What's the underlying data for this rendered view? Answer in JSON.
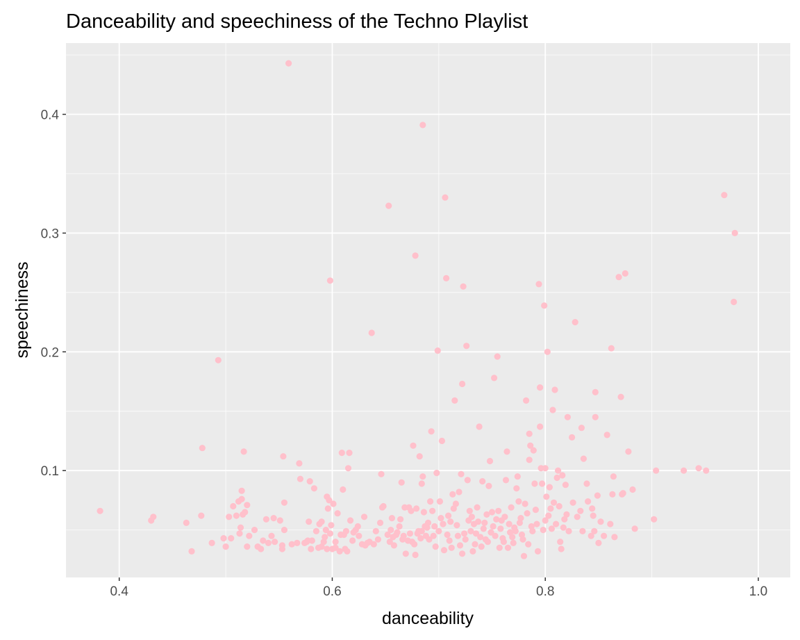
{
  "chart_data": {
    "type": "scatter",
    "title": "Danceability and speechiness of the Techno Playlist",
    "xlabel": "danceability",
    "ylabel": "speechiness",
    "xlim": [
      0.35,
      1.03
    ],
    "ylim": [
      0.01,
      0.46
    ],
    "x_ticks": [
      "0.4",
      "0.6",
      "0.8",
      "1.0"
    ],
    "y_ticks": [
      "0.1",
      "0.2",
      "0.3",
      "0.4"
    ],
    "grid": true,
    "point_color": "#ffc0cb",
    "panel_color": "#ebebeb",
    "points": [
      [
        0.382,
        0.066
      ],
      [
        0.43,
        0.058
      ],
      [
        0.432,
        0.061
      ],
      [
        0.463,
        0.056
      ],
      [
        0.468,
        0.032
      ],
      [
        0.477,
        0.062
      ],
      [
        0.478,
        0.119
      ],
      [
        0.487,
        0.039
      ],
      [
        0.493,
        0.193
      ],
      [
        0.498,
        0.043
      ],
      [
        0.5,
        0.036
      ],
      [
        0.503,
        0.061
      ],
      [
        0.505,
        0.043
      ],
      [
        0.507,
        0.07
      ],
      [
        0.51,
        0.062
      ],
      [
        0.512,
        0.074
      ],
      [
        0.513,
        0.047
      ],
      [
        0.514,
        0.052
      ],
      [
        0.515,
        0.076
      ],
      [
        0.515,
        0.083
      ],
      [
        0.516,
        0.063
      ],
      [
        0.517,
        0.116
      ],
      [
        0.518,
        0.065
      ],
      [
        0.52,
        0.071
      ],
      [
        0.52,
        0.036
      ],
      [
        0.522,
        0.045
      ],
      [
        0.527,
        0.05
      ],
      [
        0.53,
        0.036
      ],
      [
        0.533,
        0.034
      ],
      [
        0.535,
        0.041
      ],
      [
        0.538,
        0.059
      ],
      [
        0.54,
        0.039
      ],
      [
        0.543,
        0.045
      ],
      [
        0.545,
        0.06
      ],
      [
        0.546,
        0.04
      ],
      [
        0.551,
        0.058
      ],
      [
        0.553,
        0.037
      ],
      [
        0.553,
        0.034
      ],
      [
        0.554,
        0.112
      ],
      [
        0.555,
        0.073
      ],
      [
        0.555,
        0.05
      ],
      [
        0.559,
        0.443
      ],
      [
        0.562,
        0.038
      ],
      [
        0.567,
        0.039
      ],
      [
        0.569,
        0.106
      ],
      [
        0.57,
        0.093
      ],
      [
        0.574,
        0.039
      ],
      [
        0.576,
        0.04
      ],
      [
        0.577,
        0.041
      ],
      [
        0.578,
        0.057
      ],
      [
        0.579,
        0.091
      ],
      [
        0.58,
        0.034
      ],
      [
        0.581,
        0.041
      ],
      [
        0.583,
        0.085
      ],
      [
        0.585,
        0.049
      ],
      [
        0.587,
        0.035
      ],
      [
        0.588,
        0.055
      ],
      [
        0.59,
        0.057
      ],
      [
        0.59,
        0.036
      ],
      [
        0.592,
        0.04
      ],
      [
        0.593,
        0.044
      ],
      [
        0.594,
        0.05
      ],
      [
        0.595,
        0.034
      ],
      [
        0.595,
        0.078
      ],
      [
        0.596,
        0.068
      ],
      [
        0.597,
        0.075
      ],
      [
        0.598,
        0.26
      ],
      [
        0.598,
        0.047
      ],
      [
        0.599,
        0.054
      ],
      [
        0.6,
        0.034
      ],
      [
        0.601,
        0.072
      ],
      [
        0.603,
        0.04
      ],
      [
        0.603,
        0.035
      ],
      [
        0.605,
        0.064
      ],
      [
        0.607,
        0.032
      ],
      [
        0.608,
        0.046
      ],
      [
        0.609,
        0.115
      ],
      [
        0.61,
        0.084
      ],
      [
        0.611,
        0.046
      ],
      [
        0.612,
        0.034
      ],
      [
        0.613,
        0.049
      ],
      [
        0.614,
        0.032
      ],
      [
        0.615,
        0.102
      ],
      [
        0.616,
        0.115
      ],
      [
        0.617,
        0.058
      ],
      [
        0.619,
        0.041
      ],
      [
        0.62,
        0.048
      ],
      [
        0.622,
        0.05
      ],
      [
        0.624,
        0.053
      ],
      [
        0.625,
        0.045
      ],
      [
        0.628,
        0.038
      ],
      [
        0.63,
        0.061
      ],
      [
        0.631,
        0.037
      ],
      [
        0.633,
        0.039
      ],
      [
        0.635,
        0.04
      ],
      [
        0.637,
        0.216
      ],
      [
        0.639,
        0.038
      ],
      [
        0.641,
        0.049
      ],
      [
        0.643,
        0.042
      ],
      [
        0.645,
        0.056
      ],
      [
        0.646,
        0.097
      ],
      [
        0.647,
        0.069
      ],
      [
        0.648,
        0.07
      ],
      [
        0.652,
        0.046
      ],
      [
        0.653,
        0.323
      ],
      [
        0.654,
        0.04
      ],
      [
        0.655,
        0.05
      ],
      [
        0.656,
        0.06
      ],
      [
        0.657,
        0.044
      ],
      [
        0.658,
        0.037
      ],
      [
        0.66,
        0.046
      ],
      [
        0.661,
        0.048
      ],
      [
        0.663,
        0.053
      ],
      [
        0.664,
        0.059
      ],
      [
        0.665,
        0.09
      ],
      [
        0.666,
        0.042
      ],
      [
        0.667,
        0.045
      ],
      [
        0.668,
        0.069
      ],
      [
        0.669,
        0.03
      ],
      [
        0.671,
        0.041
      ],
      [
        0.672,
        0.069
      ],
      [
        0.673,
        0.047
      ],
      [
        0.674,
        0.066
      ],
      [
        0.675,
        0.04
      ],
      [
        0.676,
        0.121
      ],
      [
        0.677,
        0.038
      ],
      [
        0.678,
        0.029
      ],
      [
        0.678,
        0.281
      ],
      [
        0.679,
        0.068
      ],
      [
        0.68,
        0.047
      ],
      [
        0.681,
        0.049
      ],
      [
        0.682,
        0.112
      ],
      [
        0.683,
        0.043
      ],
      [
        0.684,
        0.049
      ],
      [
        0.684,
        0.089
      ],
      [
        0.685,
        0.095
      ],
      [
        0.685,
        0.391
      ],
      [
        0.686,
        0.065
      ],
      [
        0.687,
        0.053
      ],
      [
        0.688,
        0.045
      ],
      [
        0.689,
        0.052
      ],
      [
        0.69,
        0.056
      ],
      [
        0.691,
        0.042
      ],
      [
        0.692,
        0.074
      ],
      [
        0.693,
        0.133
      ],
      [
        0.694,
        0.066
      ],
      [
        0.695,
        0.045
      ],
      [
        0.696,
        0.053
      ],
      [
        0.697,
        0.036
      ],
      [
        0.698,
        0.098
      ],
      [
        0.699,
        0.201
      ],
      [
        0.7,
        0.049
      ],
      [
        0.701,
        0.074
      ],
      [
        0.702,
        0.06
      ],
      [
        0.703,
        0.125
      ],
      [
        0.704,
        0.055
      ],
      [
        0.705,
        0.033
      ],
      [
        0.706,
        0.33
      ],
      [
        0.707,
        0.262
      ],
      [
        0.708,
        0.046
      ],
      [
        0.709,
        0.062
      ],
      [
        0.71,
        0.041
      ],
      [
        0.711,
        0.057
      ],
      [
        0.712,
        0.035
      ],
      [
        0.713,
        0.08
      ],
      [
        0.714,
        0.068
      ],
      [
        0.715,
        0.159
      ],
      [
        0.716,
        0.072
      ],
      [
        0.717,
        0.054
      ],
      [
        0.718,
        0.045
      ],
      [
        0.719,
        0.082
      ],
      [
        0.72,
        0.037
      ],
      [
        0.721,
        0.097
      ],
      [
        0.722,
        0.173
      ],
      [
        0.722,
        0.03
      ],
      [
        0.723,
        0.255
      ],
      [
        0.724,
        0.047
      ],
      [
        0.725,
        0.042
      ],
      [
        0.726,
        0.205
      ],
      [
        0.727,
        0.092
      ],
      [
        0.728,
        0.058
      ],
      [
        0.729,
        0.066
      ],
      [
        0.73,
        0.049
      ],
      [
        0.731,
        0.061
      ],
      [
        0.732,
        0.032
      ],
      [
        0.733,
        0.055
      ],
      [
        0.734,
        0.038
      ],
      [
        0.735,
        0.047
      ],
      [
        0.736,
        0.069
      ],
      [
        0.737,
        0.057
      ],
      [
        0.738,
        0.137
      ],
      [
        0.739,
        0.044
      ],
      [
        0.74,
        0.036
      ],
      [
        0.741,
        0.091
      ],
      [
        0.742,
        0.051
      ],
      [
        0.743,
        0.056
      ],
      [
        0.744,
        0.042
      ],
      [
        0.745,
        0.063
      ],
      [
        0.746,
        0.04
      ],
      [
        0.747,
        0.087
      ],
      [
        0.748,
        0.108
      ],
      [
        0.749,
        0.048
      ],
      [
        0.75,
        0.065
      ],
      [
        0.751,
        0.053
      ],
      [
        0.752,
        0.178
      ],
      [
        0.753,
        0.045
      ],
      [
        0.754,
        0.059
      ],
      [
        0.755,
        0.196
      ],
      [
        0.756,
        0.066
      ],
      [
        0.757,
        0.035
      ],
      [
        0.758,
        0.051
      ],
      [
        0.759,
        0.058
      ],
      [
        0.76,
        0.043
      ],
      [
        0.761,
        0.04
      ],
      [
        0.762,
        0.061
      ],
      [
        0.763,
        0.092
      ],
      [
        0.764,
        0.116
      ],
      [
        0.765,
        0.035
      ],
      [
        0.766,
        0.055
      ],
      [
        0.767,
        0.048
      ],
      [
        0.768,
        0.069
      ],
      [
        0.769,
        0.044
      ],
      [
        0.77,
        0.039
      ],
      [
        0.771,
        0.052
      ],
      [
        0.772,
        0.049
      ],
      [
        0.773,
        0.085
      ],
      [
        0.774,
        0.095
      ],
      [
        0.775,
        0.074
      ],
      [
        0.776,
        0.056
      ],
      [
        0.777,
        0.06
      ],
      [
        0.778,
        0.046
      ],
      [
        0.779,
        0.042
      ],
      [
        0.78,
        0.028
      ],
      [
        0.781,
        0.072
      ],
      [
        0.782,
        0.159
      ],
      [
        0.783,
        0.064
      ],
      [
        0.784,
        0.038
      ],
      [
        0.785,
        0.109
      ],
      [
        0.785,
        0.131
      ],
      [
        0.786,
        0.121
      ],
      [
        0.787,
        0.053
      ],
      [
        0.788,
        0.049
      ],
      [
        0.789,
        0.117
      ],
      [
        0.79,
        0.089
      ],
      [
        0.791,
        0.067
      ],
      [
        0.792,
        0.055
      ],
      [
        0.793,
        0.032
      ],
      [
        0.794,
        0.257
      ],
      [
        0.795,
        0.17
      ],
      [
        0.795,
        0.137
      ],
      [
        0.796,
        0.102
      ],
      [
        0.797,
        0.089
      ],
      [
        0.798,
        0.05
      ],
      [
        0.799,
        0.239
      ],
      [
        0.8,
        0.102
      ],
      [
        0.8,
        0.058
      ],
      [
        0.801,
        0.078
      ],
      [
        0.802,
        0.2
      ],
      [
        0.803,
        0.062
      ],
      [
        0.804,
        0.086
      ],
      [
        0.805,
        0.068
      ],
      [
        0.806,
        0.051
      ],
      [
        0.807,
        0.151
      ],
      [
        0.808,
        0.073
      ],
      [
        0.809,
        0.168
      ],
      [
        0.81,
        0.055
      ],
      [
        0.811,
        0.094
      ],
      [
        0.812,
        0.1
      ],
      [
        0.813,
        0.07
      ],
      [
        0.814,
        0.04
      ],
      [
        0.815,
        0.034
      ],
      [
        0.816,
        0.096
      ],
      [
        0.817,
        0.052
      ],
      [
        0.818,
        0.059
      ],
      [
        0.819,
        0.088
      ],
      [
        0.82,
        0.063
      ],
      [
        0.821,
        0.145
      ],
      [
        0.822,
        0.049
      ],
      [
        0.825,
        0.128
      ],
      [
        0.826,
        0.073
      ],
      [
        0.828,
        0.225
      ],
      [
        0.83,
        0.061
      ],
      [
        0.833,
        0.066
      ],
      [
        0.834,
        0.136
      ],
      [
        0.835,
        0.049
      ],
      [
        0.836,
        0.11
      ],
      [
        0.839,
        0.089
      ],
      [
        0.84,
        0.074
      ],
      [
        0.843,
        0.045
      ],
      [
        0.844,
        0.068
      ],
      [
        0.845,
        0.062
      ],
      [
        0.846,
        0.049
      ],
      [
        0.847,
        0.145
      ],
      [
        0.847,
        0.166
      ],
      [
        0.849,
        0.079
      ],
      [
        0.85,
        0.039
      ],
      [
        0.852,
        0.057
      ],
      [
        0.855,
        0.045
      ],
      [
        0.858,
        0.13
      ],
      [
        0.861,
        0.055
      ],
      [
        0.862,
        0.203
      ],
      [
        0.863,
        0.08
      ],
      [
        0.864,
        0.095
      ],
      [
        0.865,
        0.044
      ],
      [
        0.869,
        0.263
      ],
      [
        0.871,
        0.162
      ],
      [
        0.872,
        0.08
      ],
      [
        0.873,
        0.081
      ],
      [
        0.875,
        0.266
      ],
      [
        0.878,
        0.116
      ],
      [
        0.882,
        0.084
      ],
      [
        0.884,
        0.051
      ],
      [
        0.902,
        0.059
      ],
      [
        0.904,
        0.1
      ],
      [
        0.93,
        0.1
      ],
      [
        0.944,
        0.102
      ],
      [
        0.951,
        0.1
      ],
      [
        0.968,
        0.332
      ],
      [
        0.977,
        0.242
      ],
      [
        0.978,
        0.3
      ]
    ]
  }
}
